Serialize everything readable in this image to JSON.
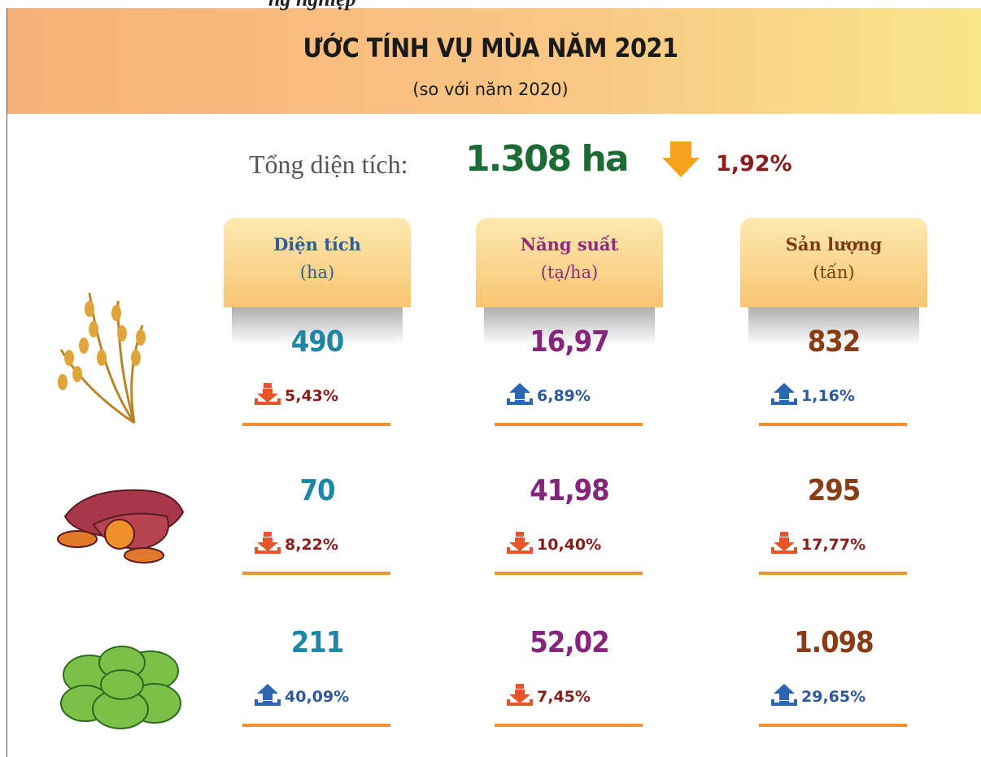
{
  "header": {
    "cut_text": "ng nghiệp",
    "title": "ƯỚC TÍNH VỤ MÙA NĂM 2021",
    "subtitle": "(so với năm 2020)"
  },
  "total": {
    "label": "Tổng diện tích:",
    "value": "1.308 ha",
    "change": "1,92%",
    "direction": "down"
  },
  "columns": [
    {
      "title": "Diện tích",
      "unit": "(ha)",
      "title_color": "#2a5c9e",
      "value_color": "#1f87a6"
    },
    {
      "title": "Năng suất",
      "unit": "(tạ/ha)",
      "title_color": "#8e2a82",
      "value_color": "#86257c"
    },
    {
      "title": "Sản lượng",
      "unit": "(tấn)",
      "title_color": "#7a3b12",
      "value_color": "#8a3c16"
    }
  ],
  "rows": [
    {
      "cells": [
        {
          "value": "490",
          "change": "5,43%",
          "direction": "down"
        },
        {
          "value": "16,97",
          "change": "6,89%",
          "direction": "up"
        },
        {
          "value": "832",
          "change": "1,16%",
          "direction": "up"
        }
      ]
    },
    {
      "cells": [
        {
          "value": "70",
          "change": "8,22%",
          "direction": "down"
        },
        {
          "value": "41,98",
          "change": "10,40%",
          "direction": "down"
        },
        {
          "value": "295",
          "change": "17,77%",
          "direction": "down"
        }
      ]
    },
    {
      "cells": [
        {
          "value": "211",
          "change": "40,09%",
          "direction": "up"
        },
        {
          "value": "52,02",
          "change": "7,45%",
          "direction": "down"
        },
        {
          "value": "1.098",
          "change": "29,65%",
          "direction": "up"
        }
      ]
    }
  ]
}
